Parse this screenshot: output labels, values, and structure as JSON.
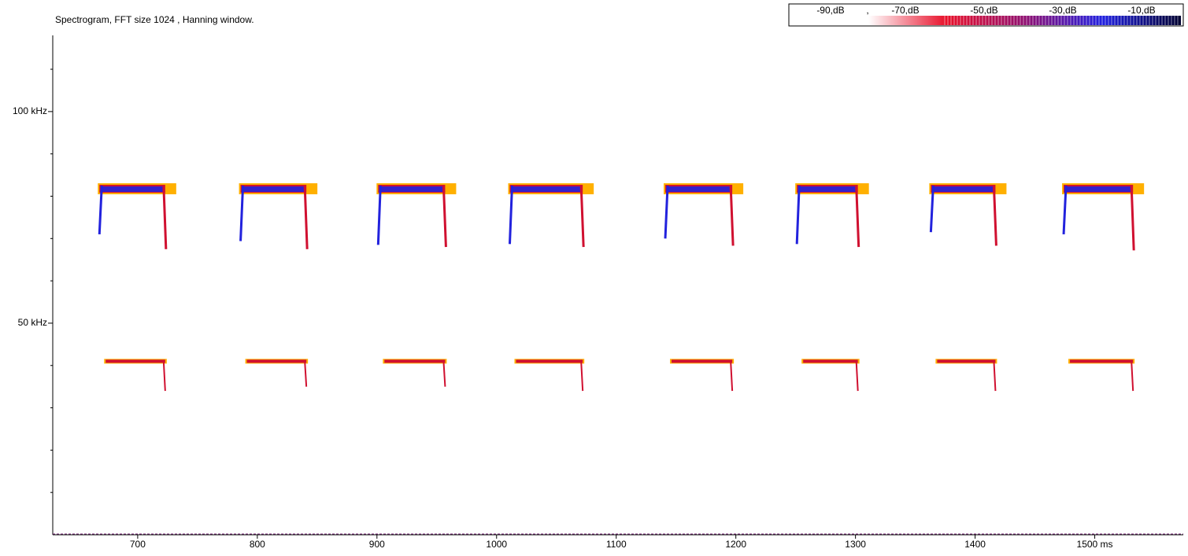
{
  "chart_data": {
    "type": "spectrogram",
    "title": "Spectrogram, FFT size 1024 , Hanning window.",
    "xlim": [
      629,
      1574
    ],
    "ylim": [
      0,
      118
    ],
    "xticks": [
      700,
      800,
      900,
      1000,
      1100,
      1200,
      1300,
      1400,
      {
        "value": 1500,
        "label": "1500 ms"
      }
    ],
    "yticks": [
      {
        "value": 50,
        "label": "50 kHz"
      },
      {
        "value": 100,
        "label": "100 kHz"
      }
    ],
    "minor_yticks": [
      10,
      20,
      30,
      40,
      60,
      70,
      80,
      90,
      110
    ],
    "calls": {
      "start": [
        668,
        786,
        901,
        1011,
        1141,
        1251,
        1363,
        1474
      ],
      "end": [
        723,
        841,
        957,
        1072,
        1197,
        1302,
        1417,
        1532
      ],
      "fmax": [
        82.5,
        82.5,
        82.5,
        82.5,
        82.5,
        82.5,
        82.5,
        82.5
      ],
      "fstart": [
        71,
        69.4,
        68.5,
        68.7,
        70,
        68.7,
        71.5,
        71
      ],
      "fend": [
        67.5,
        67.5,
        68,
        68,
        68.3,
        68,
        68.3,
        67.2
      ],
      "harmonic": [
        41,
        41,
        41,
        41,
        41,
        41,
        41,
        41
      ],
      "harmonic_end": [
        34,
        35,
        35,
        34,
        34,
        34,
        34,
        34
      ]
    },
    "colors": {
      "halo": "#ffb000",
      "mid": "#d01030",
      "core": "#2222dd"
    },
    "colorbar": {
      "labels": [
        "-90,dB",
        ",",
        "-70,dB",
        "-50,dB",
        "-30,dB",
        "-10,dB"
      ],
      "colors": [
        "#ffffff",
        "#ffffff",
        "#e8102a",
        "#901070",
        "#2020e0",
        "#000030"
      ]
    }
  }
}
